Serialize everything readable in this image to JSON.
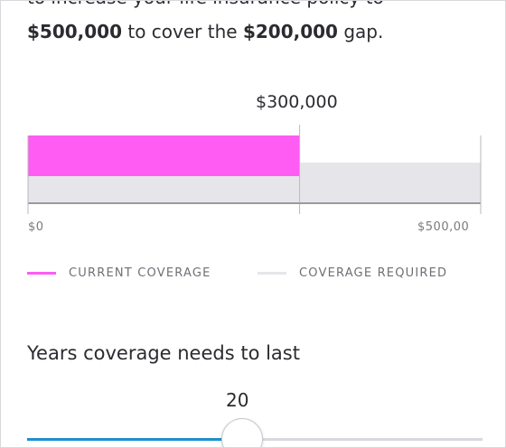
{
  "intro": {
    "top_partial": "to increase your life insurance policy to",
    "amount_target": "$500,000",
    "text_middle": "to cover the",
    "amount_gap": "$200,000",
    "text_end": "gap."
  },
  "chart_data": {
    "type": "bar",
    "orientation": "horizontal",
    "marker_label": "$300,000",
    "xlim": [
      0,
      500000
    ],
    "tick_labels": [
      "$0",
      "$500,00"
    ],
    "series": [
      {
        "name": "CURRENT COVERAGE",
        "value": 300000,
        "color": "#ff5cf4"
      },
      {
        "name": "COVERAGE REQUIRED",
        "value": 500000,
        "color": "#e6e6ea"
      }
    ]
  },
  "legend": {
    "current": "CURRENT COVERAGE",
    "required": "COVERAGE REQUIRED"
  },
  "years_section": {
    "title": "Years coverage needs to last",
    "slider_value": "20",
    "slider_fraction": 0.47
  },
  "colors": {
    "current": "#ff5cf4",
    "required": "#e6e6ea",
    "slider_active": "#1d8fcf"
  }
}
